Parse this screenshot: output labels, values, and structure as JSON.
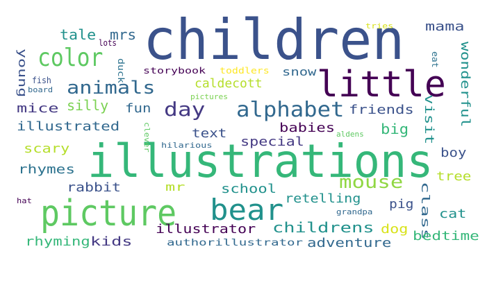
{
  "word_cloud": {
    "words": [
      {
        "text": "children",
        "color": "#3b528b"
      },
      {
        "text": "illustrations",
        "color": "#35b779"
      },
      {
        "text": "little",
        "color": "#440154"
      },
      {
        "text": "picture",
        "color": "#5ec962"
      },
      {
        "text": "bear",
        "color": "#21918c"
      },
      {
        "text": "color",
        "color": "#5ec962"
      },
      {
        "text": "alphabet",
        "color": "#31688e"
      },
      {
        "text": "animals",
        "color": "#31688e"
      },
      {
        "text": "day",
        "color": "#443983"
      },
      {
        "text": "mouse",
        "color": "#90d743"
      },
      {
        "text": "tale",
        "color": "#21918c"
      },
      {
        "text": "mrs",
        "color": "#31688e"
      },
      {
        "text": "mama",
        "color": "#3b528b"
      },
      {
        "text": "young",
        "color": "#3b528b"
      },
      {
        "text": "lots",
        "color": "#440154"
      },
      {
        "text": "duck",
        "color": "#2c728e"
      },
      {
        "text": "storybook",
        "color": "#440154"
      },
      {
        "text": "toddlers",
        "color": "#fde725"
      },
      {
        "text": "snow",
        "color": "#31688e"
      },
      {
        "text": "eat",
        "color": "#2c728e"
      },
      {
        "text": "wonderful",
        "color": "#21918c"
      },
      {
        "text": "fish",
        "color": "#3b528b"
      },
      {
        "text": "board",
        "color": "#31688e"
      },
      {
        "text": "caldecott",
        "color": "#b5de2b"
      },
      {
        "text": "pictures",
        "color": "#7ad151"
      },
      {
        "text": "mice",
        "color": "#443983"
      },
      {
        "text": "silly",
        "color": "#7ad151"
      },
      {
        "text": "fun",
        "color": "#31688e"
      },
      {
        "text": "friends",
        "color": "#3b528b"
      },
      {
        "text": "visit",
        "color": "#21918c"
      },
      {
        "text": "illustrated",
        "color": "#31688e"
      },
      {
        "text": "babies",
        "color": "#440154"
      },
      {
        "text": "big",
        "color": "#35b779"
      },
      {
        "text": "clever",
        "color": "#5ec962"
      },
      {
        "text": "aldens",
        "color": "#5ec962"
      },
      {
        "text": "text",
        "color": "#3b528b"
      },
      {
        "text": "scary",
        "color": "#b5de2b"
      },
      {
        "text": "special",
        "color": "#443983"
      },
      {
        "text": "hilarious",
        "color": "#31688e"
      },
      {
        "text": "boy",
        "color": "#3b528b"
      },
      {
        "text": "rhymes",
        "color": "#2c728e"
      },
      {
        "text": "tree",
        "color": "#b5de2b"
      },
      {
        "text": "rabbit",
        "color": "#3b528b"
      },
      {
        "text": "mr",
        "color": "#b5de2b"
      },
      {
        "text": "school",
        "color": "#21918c"
      },
      {
        "text": "retelling",
        "color": "#21918c"
      },
      {
        "text": "class",
        "color": "#31688e"
      },
      {
        "text": "pig",
        "color": "#3b528b"
      },
      {
        "text": "hat",
        "color": "#440154"
      },
      {
        "text": "grandpa",
        "color": "#31688e"
      },
      {
        "text": "cat",
        "color": "#21918c"
      },
      {
        "text": "illustrator",
        "color": "#440154"
      },
      {
        "text": "childrens",
        "color": "#21918c"
      },
      {
        "text": "dog",
        "color": "#d8e219"
      },
      {
        "text": "rhyming",
        "color": "#35b779"
      },
      {
        "text": "kids",
        "color": "#443983"
      },
      {
        "text": "authorillustrator",
        "color": "#31688e"
      },
      {
        "text": "adventure",
        "color": "#31688e"
      },
      {
        "text": "bedtime",
        "color": "#35b779"
      },
      {
        "text": "tries",
        "color": "#d8e219"
      }
    ]
  }
}
